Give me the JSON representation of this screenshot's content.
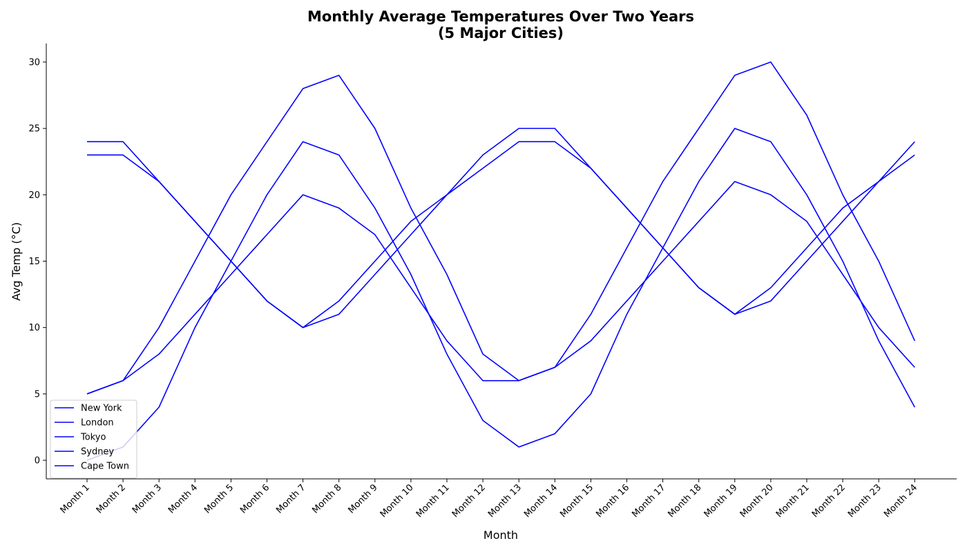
{
  "chart_data": {
    "type": "line",
    "title_line1": "Monthly Average Temperatures Over Two Years",
    "title_line2": "(5 Major Cities)",
    "xlabel": "Month",
    "ylabel": "Avg Temp (°C)",
    "categories": [
      "Month 1",
      "Month 2",
      "Month 3",
      "Month 4",
      "Month 5",
      "Month 6",
      "Month 7",
      "Month 8",
      "Month 9",
      "Month 10",
      "Month 11",
      "Month 12",
      "Month 13",
      "Month 14",
      "Month 15",
      "Month 16",
      "Month 17",
      "Month 18",
      "Month 19",
      "Month 20",
      "Month 21",
      "Month 22",
      "Month 23",
      "Month 24"
    ],
    "ylim": [
      -1.4,
      31.4
    ],
    "yticks": [
      0,
      5,
      10,
      15,
      20,
      25,
      30
    ],
    "grid": false,
    "legend_position": "lower-left",
    "line_color": "#0000ff",
    "series": [
      {
        "name": "New York",
        "values": [
          0,
          1,
          4,
          10,
          15,
          20,
          24,
          23,
          19,
          14,
          8,
          3,
          1,
          2,
          5,
          11,
          16,
          21,
          25,
          24,
          20,
          15,
          9,
          4
        ]
      },
      {
        "name": "London",
        "values": [
          5,
          6,
          8,
          11,
          14,
          17,
          20,
          19,
          17,
          13,
          9,
          6,
          6,
          7,
          9,
          12,
          15,
          18,
          21,
          20,
          18,
          14,
          10,
          7
        ]
      },
      {
        "name": "Tokyo",
        "values": [
          5,
          6,
          10,
          15,
          20,
          24,
          28,
          29,
          25,
          19,
          14,
          8,
          6,
          7,
          11,
          16,
          21,
          25,
          29,
          30,
          26,
          20,
          15,
          9
        ]
      },
      {
        "name": "Sydney",
        "values": [
          23,
          23,
          21,
          18,
          15,
          12,
          10,
          11,
          14,
          17,
          20,
          22,
          24,
          24,
          22,
          19,
          16,
          13,
          11,
          12,
          15,
          18,
          21,
          23
        ]
      },
      {
        "name": "Cape Town",
        "values": [
          24,
          24,
          21,
          18,
          15,
          12,
          10,
          12,
          15,
          18,
          20,
          23,
          25,
          25,
          22,
          19,
          16,
          13,
          11,
          13,
          16,
          19,
          21,
          24
        ]
      }
    ]
  }
}
